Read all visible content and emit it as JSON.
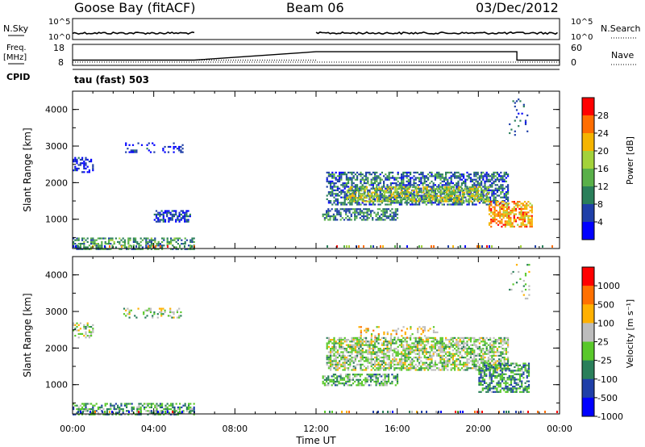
{
  "header": {
    "station": "Goose Bay (fitACF)",
    "beam": "Beam 06",
    "date": "03/Dec/2012"
  },
  "status_panel": {
    "nsky_label": "N.Sky",
    "nsky_ticks": [
      "10^5",
      "10^0"
    ],
    "nsearch_label": "N.Search",
    "nsearch_ticks": [
      "10^5",
      "10^0"
    ],
    "freq_label": "Freq.",
    "freq_unit": "[MHz]",
    "freq_ticks": [
      "18",
      "8"
    ],
    "nave_label": "Nave",
    "nave_ticks": [
      "60",
      "0"
    ],
    "cpid_label": "CPID",
    "cpid_value": "tau (fast) 503",
    "freq_trace": [
      {
        "from": 0,
        "to": 6,
        "mhz": 10.5
      },
      {
        "from": 12,
        "to": 21.9,
        "mhz": 14.5
      },
      {
        "from": 21.9,
        "to": 24,
        "mhz": 10.5
      }
    ],
    "data_gap": {
      "from": 6,
      "to": 12
    }
  },
  "chart_data": [
    {
      "type": "heatmap",
      "name": "power",
      "xlabel": "",
      "ylabel": "Slant Range [km]",
      "xlim": [
        0,
        24
      ],
      "ylim": [
        200,
        4500
      ],
      "yticks": [
        "4000",
        "3000",
        "2000",
        "1000"
      ],
      "colorbar_label": "Power [dB]",
      "colorbar_ticks": [
        "28",
        "24",
        "20",
        "16",
        "12",
        "8",
        "4"
      ],
      "colorbar_colors": [
        "#0000ff",
        "#1f3fa8",
        "#2a7f5a",
        "#59b049",
        "#a3d23a",
        "#f5b400",
        "#ff6d00",
        "#ff0000"
      ],
      "regions": [
        {
          "t0": 0.0,
          "t1": 1.0,
          "r0": 2300,
          "r1": 2700,
          "density": 0.5,
          "level": 0.1
        },
        {
          "t0": 0.0,
          "t1": 6.0,
          "r0": 200,
          "r1": 500,
          "density": 0.5,
          "level": 0.35
        },
        {
          "t0": 4.0,
          "t1": 5.8,
          "r0": 950,
          "r1": 1250,
          "density": 0.6,
          "level": 0.15
        },
        {
          "t0": 2.5,
          "t1": 5.5,
          "r0": 2850,
          "r1": 3100,
          "density": 0.25,
          "level": 0.1
        },
        {
          "t0": 12.5,
          "t1": 21.5,
          "r0": 1400,
          "r1": 2300,
          "density": 0.6,
          "level": 0.25
        },
        {
          "t0": 13.5,
          "t1": 20.5,
          "r0": 1500,
          "r1": 1900,
          "density": 0.55,
          "level": 0.55
        },
        {
          "t0": 12.3,
          "t1": 16.0,
          "r0": 1000,
          "r1": 1300,
          "density": 0.6,
          "level": 0.3
        },
        {
          "t0": 20.5,
          "t1": 22.6,
          "r0": 800,
          "r1": 1500,
          "density": 0.6,
          "level": 0.75
        },
        {
          "t0": 21.5,
          "t1": 22.5,
          "r0": 3300,
          "r1": 4300,
          "density": 0.1,
          "level": 0.15
        }
      ]
    },
    {
      "type": "heatmap",
      "name": "velocity",
      "xlabel": "Time UT",
      "ylabel": "Slant Range [km]",
      "xlim": [
        0,
        24
      ],
      "ylim": [
        200,
        4500
      ],
      "xticks": [
        "00:00",
        "04:00",
        "08:00",
        "12:00",
        "16:00",
        "20:00",
        "00:00"
      ],
      "yticks": [
        "4000",
        "3000",
        "2000",
        "1000"
      ],
      "colorbar_label": "Velocity [m s⁻¹]",
      "colorbar_ticks": [
        "1000",
        "500",
        "100",
        "25",
        "-25",
        "-100",
        "-500",
        "-1000"
      ],
      "colorbar_colors": [
        "#0000ff",
        "#1f3fa8",
        "#2a7f5a",
        "#59c82a",
        "#bdbdbd",
        "#ffb000",
        "#ff7000",
        "#ff0000"
      ],
      "regions": [
        {
          "t0": 0.0,
          "t1": 1.0,
          "r0": 2300,
          "r1": 2700,
          "density": 0.5,
          "level": 0.5
        },
        {
          "t0": 0.0,
          "t1": 6.0,
          "r0": 200,
          "r1": 500,
          "density": 0.55,
          "level": 0.38
        },
        {
          "t0": 2.5,
          "t1": 5.5,
          "r0": 2850,
          "r1": 3100,
          "density": 0.25,
          "level": 0.5
        },
        {
          "t0": 12.5,
          "t1": 21.5,
          "r0": 1400,
          "r1": 2300,
          "density": 0.65,
          "level": 0.5
        },
        {
          "t0": 12.3,
          "t1": 16.0,
          "r0": 1000,
          "r1": 1300,
          "density": 0.55,
          "level": 0.4
        },
        {
          "t0": 20.0,
          "t1": 22.5,
          "r0": 800,
          "r1": 1600,
          "density": 0.6,
          "level": 0.33
        },
        {
          "t0": 14.0,
          "t1": 18.0,
          "r0": 2300,
          "r1": 2600,
          "density": 0.2,
          "level": 0.62
        },
        {
          "t0": 21.5,
          "t1": 22.5,
          "r0": 3300,
          "r1": 4300,
          "density": 0.1,
          "level": 0.5
        }
      ]
    }
  ]
}
